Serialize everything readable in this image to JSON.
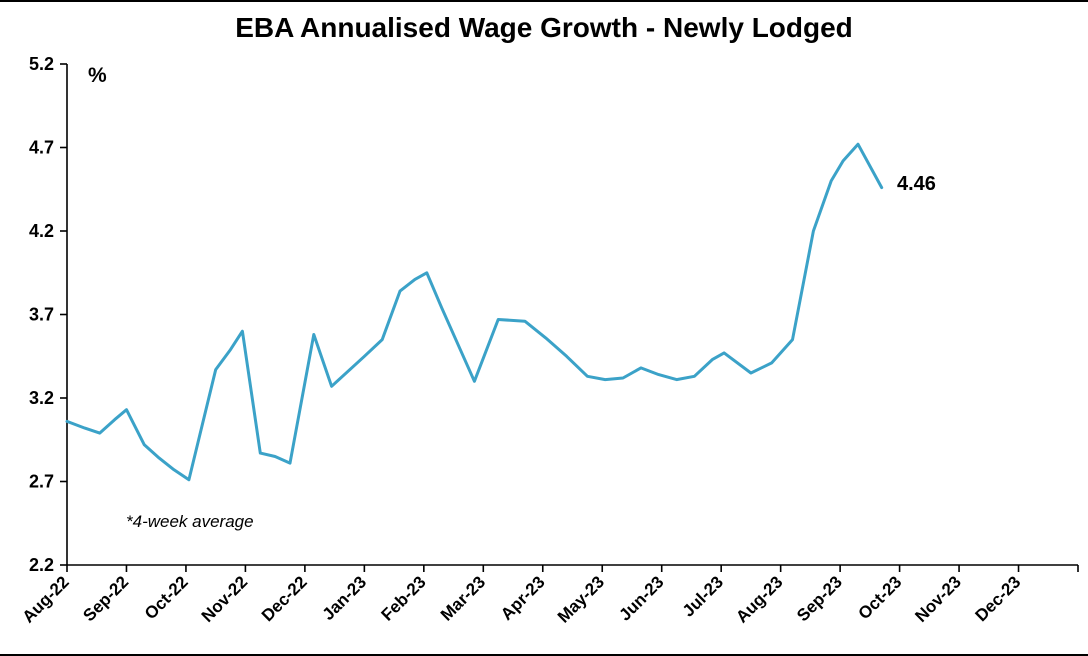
{
  "chart": {
    "title": "EBA Annualised Wage Growth - Newly Lodged",
    "y_axis_unit_label": "%",
    "note": "*4-week average",
    "end_annotation": "4.46"
  },
  "chart_data": {
    "type": "line",
    "title": "EBA Annualised Wage Growth - Newly Lodged",
    "xlabel": "",
    "ylabel": "%",
    "ylim": [
      2.2,
      5.2
    ],
    "y_ticks": [
      2.2,
      2.7,
      3.2,
      3.7,
      4.2,
      4.7,
      5.2
    ],
    "x_tick_labels": [
      "Aug-22",
      "Sep-22",
      "Oct-22",
      "Nov-22",
      "Dec-22",
      "Jan-23",
      "Feb-23",
      "Mar-23",
      "Apr-23",
      "May-23",
      "Jun-23",
      "Jul-23",
      "Aug-23",
      "Sep-23",
      "Oct-23",
      "Nov-23",
      "Dec-23"
    ],
    "grid": false,
    "legend": "none",
    "line_color": "#3BA2C8",
    "line_width": 3,
    "annotation": {
      "text": "4.46",
      "x": 13.7,
      "y": 4.46
    },
    "note": "*4-week average",
    "points_format": "[month_offset_from_Aug-22, percent_value] weekly 4-week-average series",
    "points": [
      [
        0.0,
        3.06
      ],
      [
        0.3,
        3.02
      ],
      [
        0.55,
        2.99
      ],
      [
        0.8,
        3.07
      ],
      [
        1.0,
        3.13
      ],
      [
        1.3,
        2.92
      ],
      [
        1.55,
        2.84
      ],
      [
        1.8,
        2.77
      ],
      [
        2.05,
        2.71
      ],
      [
        2.5,
        3.37
      ],
      [
        2.75,
        3.49
      ],
      [
        2.95,
        3.6
      ],
      [
        3.25,
        2.87
      ],
      [
        3.5,
        2.85
      ],
      [
        3.75,
        2.81
      ],
      [
        4.15,
        3.58
      ],
      [
        4.45,
        3.27
      ],
      [
        5.0,
        3.45
      ],
      [
        5.3,
        3.55
      ],
      [
        5.6,
        3.84
      ],
      [
        5.85,
        3.91
      ],
      [
        6.05,
        3.95
      ],
      [
        6.3,
        3.74
      ],
      [
        6.85,
        3.3
      ],
      [
        7.25,
        3.67
      ],
      [
        7.7,
        3.66
      ],
      [
        8.05,
        3.56
      ],
      [
        8.4,
        3.45
      ],
      [
        8.75,
        3.33
      ],
      [
        9.05,
        3.31
      ],
      [
        9.35,
        3.32
      ],
      [
        9.65,
        3.38
      ],
      [
        9.95,
        3.34
      ],
      [
        10.25,
        3.31
      ],
      [
        10.55,
        3.33
      ],
      [
        10.85,
        3.43
      ],
      [
        11.05,
        3.47
      ],
      [
        11.5,
        3.35
      ],
      [
        11.85,
        3.41
      ],
      [
        12.2,
        3.55
      ],
      [
        12.55,
        4.2
      ],
      [
        12.85,
        4.5
      ],
      [
        13.05,
        4.62
      ],
      [
        13.3,
        4.72
      ],
      [
        13.7,
        4.46
      ]
    ]
  }
}
